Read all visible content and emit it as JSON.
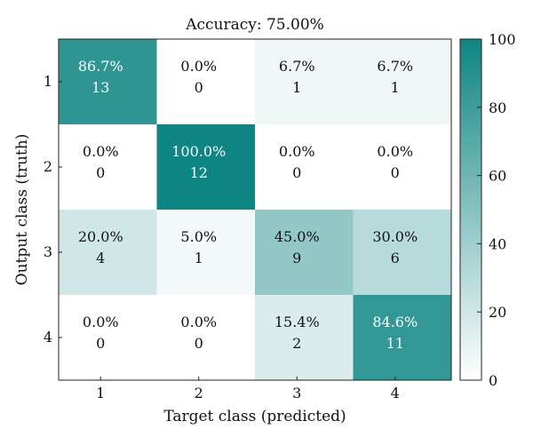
{
  "chart_data": {
    "type": "heatmap",
    "title": "Accuracy: 75.00%",
    "xlabel": "Target class (predicted)",
    "ylabel": "Output class (truth)",
    "x_categories": [
      "1",
      "2",
      "3",
      "4"
    ],
    "y_categories": [
      "1",
      "2",
      "3",
      "4"
    ],
    "percent_labels": [
      [
        "86.7%",
        "0.0%",
        "6.7%",
        "6.7%"
      ],
      [
        "0.0%",
        "100.0%",
        "0.0%",
        "0.0%"
      ],
      [
        "20.0%",
        "5.0%",
        "45.0%",
        "30.0%"
      ],
      [
        "0.0%",
        "0.0%",
        "15.4%",
        "84.6%"
      ]
    ],
    "percent_values": [
      [
        86.7,
        0.0,
        6.7,
        6.7
      ],
      [
        0.0,
        100.0,
        0.0,
        0.0
      ],
      [
        20.0,
        5.0,
        45.0,
        30.0
      ],
      [
        0.0,
        0.0,
        15.4,
        84.6
      ]
    ],
    "counts": [
      [
        13,
        0,
        1,
        1
      ],
      [
        0,
        12,
        0,
        0
      ],
      [
        4,
        1,
        9,
        6
      ],
      [
        0,
        0,
        2,
        11
      ]
    ],
    "colorbar": {
      "range": [
        0,
        100
      ],
      "ticks": [
        0,
        20,
        40,
        60,
        80,
        100
      ],
      "color_low": "#ffffff",
      "color_high": "#0e8582"
    }
  }
}
